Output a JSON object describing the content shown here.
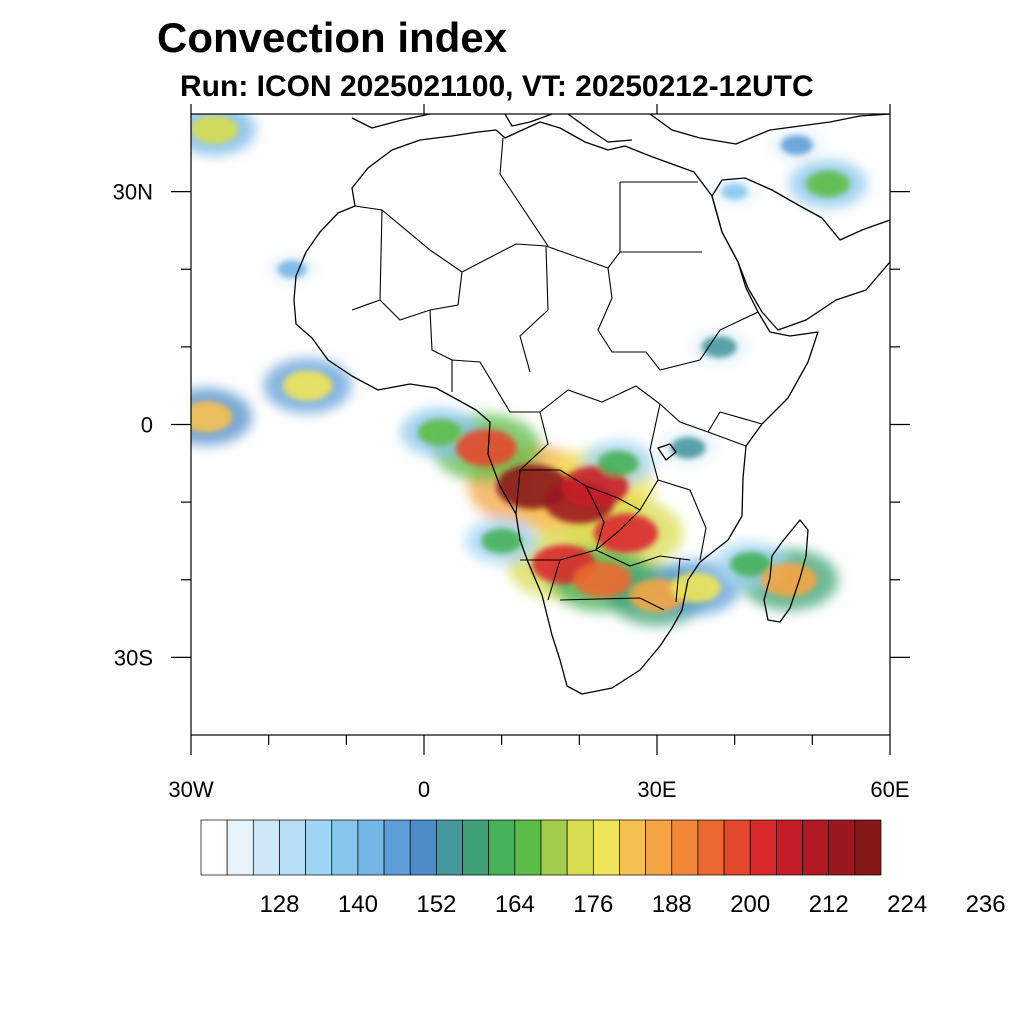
{
  "title": "Convection index",
  "subtitle": "Run: ICON 2025021100,  VT: 20250212-12UTC",
  "map": {
    "extent": {
      "lon": [
        -30,
        60
      ],
      "lat": [
        -40,
        40
      ]
    },
    "lon_ticks": [
      {
        "value": -30,
        "label": "30W"
      },
      {
        "value": 0,
        "label": "0"
      },
      {
        "value": 30,
        "label": "30E"
      },
      {
        "value": 60,
        "label": "60E"
      }
    ],
    "lat_ticks": [
      {
        "value": 30,
        "label": "30N"
      },
      {
        "value": 0,
        "label": "0"
      },
      {
        "value": -30,
        "label": "30S"
      }
    ],
    "minor_lon": [
      -20,
      -10,
      10,
      20,
      40,
      50
    ],
    "minor_lat": [
      20,
      10,
      -10,
      -20
    ]
  },
  "colorbar": {
    "colors": [
      "#ffffff",
      "#e8f4fc",
      "#cfe8f8",
      "#b8def6",
      "#a0d4f4",
      "#88c6ee",
      "#74b6e6",
      "#5e9ed8",
      "#4c8cc8",
      "#45989e",
      "#3fa276",
      "#46b05a",
      "#5cbc48",
      "#a4cc4c",
      "#d8dc50",
      "#f0e45a",
      "#f6c050",
      "#f4a444",
      "#f08838",
      "#ec6830",
      "#e4482c",
      "#d8282c",
      "#c41c28",
      "#b01824",
      "#9c1820",
      "#861818"
    ],
    "labels": [
      "128",
      "140",
      "152",
      "164",
      "176",
      "188",
      "200",
      "212",
      "224",
      "236"
    ]
  },
  "chart_data": {
    "type": "heatmap",
    "title": "Convection index",
    "subtitle": "Run: ICON 2025021100,  VT: 20250212-12UTC",
    "colorbar_levels": [
      128,
      140,
      152,
      164,
      176,
      188,
      200,
      212,
      224,
      236
    ],
    "regions": [
      {
        "lon": 14,
        "lat": -8,
        "value": 215
      },
      {
        "lon": 20,
        "lat": -10,
        "value": 210
      },
      {
        "lon": 22,
        "lat": -8,
        "value": 205
      },
      {
        "lon": 8,
        "lat": -3,
        "value": 195
      },
      {
        "lon": 26,
        "lat": -14,
        "value": 200
      },
      {
        "lon": 18,
        "lat": -18,
        "value": 200
      },
      {
        "lon": 23,
        "lat": -20,
        "value": 190
      },
      {
        "lon": 30,
        "lat": -22,
        "value": 185
      },
      {
        "lon": 35,
        "lat": -21,
        "value": 175
      },
      {
        "lon": 47,
        "lat": -20,
        "value": 185
      },
      {
        "lon": -15,
        "lat": 5,
        "value": 175
      },
      {
        "lon": -28,
        "lat": 1,
        "value": 178
      },
      {
        "lon": 2,
        "lat": -1,
        "value": 165
      },
      {
        "lon": 25,
        "lat": -5,
        "value": 160
      },
      {
        "lon": 34,
        "lat": -3,
        "value": 150
      },
      {
        "lon": 10,
        "lat": -15,
        "value": 160
      },
      {
        "lon": 52,
        "lat": 31,
        "value": 165
      },
      {
        "lon": -27,
        "lat": 38,
        "value": 170
      },
      {
        "lon": -17,
        "lat": 20,
        "value": 140
      },
      {
        "lon": 38,
        "lat": 10,
        "value": 150
      },
      {
        "lon": 40,
        "lat": 30,
        "value": 135
      },
      {
        "lon": 48,
        "lat": 36,
        "value": 145
      },
      {
        "lon": 42,
        "lat": -18,
        "value": 160
      }
    ]
  }
}
